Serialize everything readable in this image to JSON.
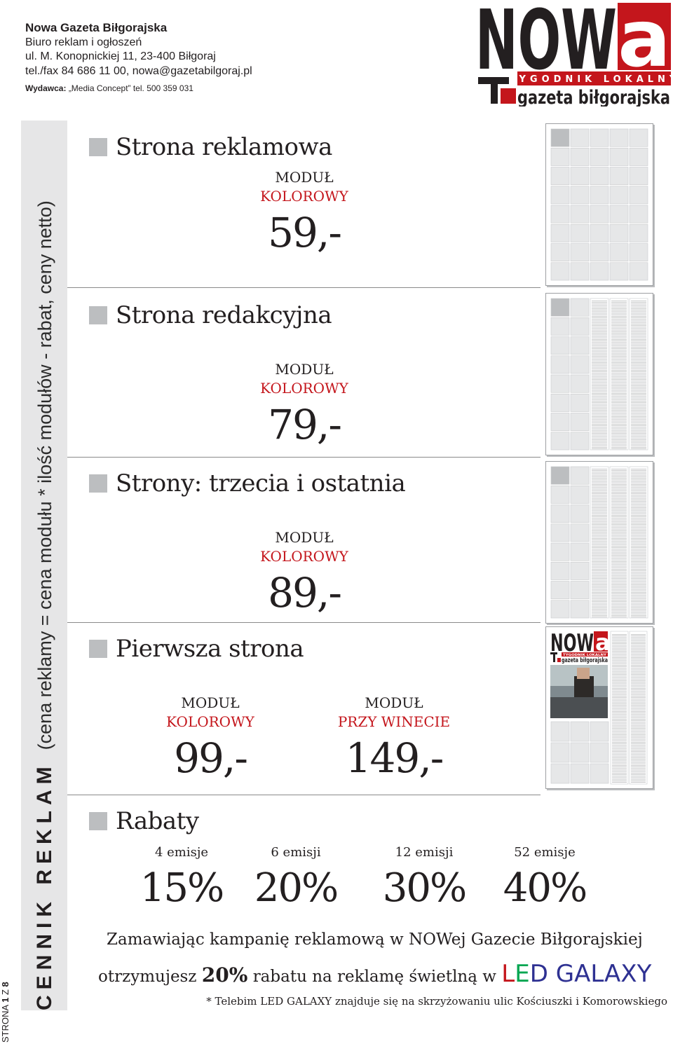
{
  "header": {
    "name": "Nowa Gazeta Biłgorajska",
    "line1": "Biuro reklam i ogłoszeń",
    "line2": "ul. M. Konopnickiej 11, 23-400 Biłgoraj",
    "line3": "tel./fax 84 686 11 00, nowa@gazetabilgoraj.pl",
    "publisher_label": "Wydawca:",
    "publisher_value": "„Media Concept” tel. 500 359 031"
  },
  "logo": {
    "word": "NOW",
    "word_a": "a",
    "tagline": "TYGODNIK LOKALNY",
    "subtitle": "gazeta biłgorajska",
    "accent": "#c4161c"
  },
  "side": {
    "title": "CENNIK REKLAM",
    "formula": "(cena reklamy = cena modułu * ilość modułów - rabat, ceny netto)",
    "page": "STRONA",
    "page_num": "1",
    "of": "Z",
    "total": "8"
  },
  "sections": [
    {
      "title": "Strona reklamowa",
      "modules": [
        {
          "label": "MODUŁ",
          "type": "KOLOROWY",
          "price": "59,-"
        }
      ]
    },
    {
      "title": "Strona redakcyjna",
      "modules": [
        {
          "label": "MODUŁ",
          "type": "KOLOROWY",
          "price": "79,-"
        }
      ]
    },
    {
      "title": "Strony: trzecia i ostatnia",
      "modules": [
        {
          "label": "MODUŁ",
          "type": "KOLOROWY",
          "price": "89,-"
        }
      ]
    },
    {
      "title": "Pierwsza strona",
      "modules": [
        {
          "label": "MODUŁ",
          "type": "KOLOROWY",
          "price": "99,-"
        },
        {
          "label": "MODUŁ",
          "type": "PRZY WINECIE",
          "price": "149,-"
        }
      ]
    }
  ],
  "rabaty": {
    "title": "Rabaty",
    "items": [
      {
        "count": "4 emisje",
        "pct": "15%"
      },
      {
        "count": "6 emisji",
        "pct": "20%"
      },
      {
        "count": "12 emisji",
        "pct": "30%"
      },
      {
        "count": "52 emisje",
        "pct": "40%"
      }
    ]
  },
  "promo": {
    "line1": "Zamawiając kampanię reklamową w NOWej Gazecie Biłgorajskiej",
    "line2_pre": "otrzymujesz",
    "line2_pct": "20%",
    "line2_post": "rabatu na reklamę świetlną w",
    "led_l": "L",
    "led_e": "E",
    "led_d": "D",
    "galaxy": "GALAXY",
    "note": "* Telebim LED GALAXY znajduje się na skrzyżowaniu ulic Kościuszki i Komorowskiego",
    "colors": {
      "l": "#c4161c",
      "e": "#00a651",
      "d": "#2e3192"
    }
  },
  "thumb_logo": {
    "word": "NOW",
    "word_a": "a",
    "tagline": "TYGODNIK LOKALNY",
    "subtitle": "gazeta biłgorajska"
  }
}
